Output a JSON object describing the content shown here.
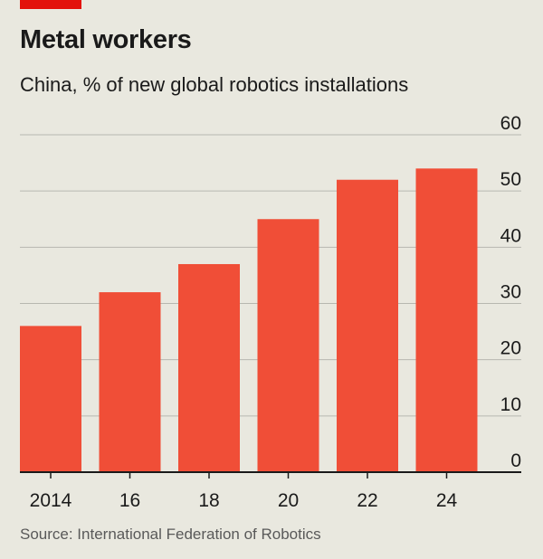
{
  "header": {
    "title": "Metal workers",
    "subtitle": "China, % of new global robotics installations"
  },
  "footer": {
    "source": "Source: International Federation of Robotics"
  },
  "colors": {
    "accent": "#e3120b",
    "bar": "#f04e37",
    "background": "#e9e8df",
    "grid": "#b7b7b0",
    "axis": "#1a1a1a"
  },
  "chart_data": {
    "type": "bar",
    "categories": [
      "2014",
      "16",
      "18",
      "20",
      "22",
      "24"
    ],
    "values": [
      26,
      32,
      37,
      45,
      52,
      54
    ],
    "title": "Metal workers",
    "subtitle": "China, % of new global robotics installations",
    "xlabel": "",
    "ylabel": "",
    "ylim": [
      0,
      60
    ],
    "yticks": [
      0,
      10,
      20,
      30,
      40,
      50,
      60
    ],
    "y_axis_side": "right",
    "grid": true,
    "legend": "none"
  }
}
